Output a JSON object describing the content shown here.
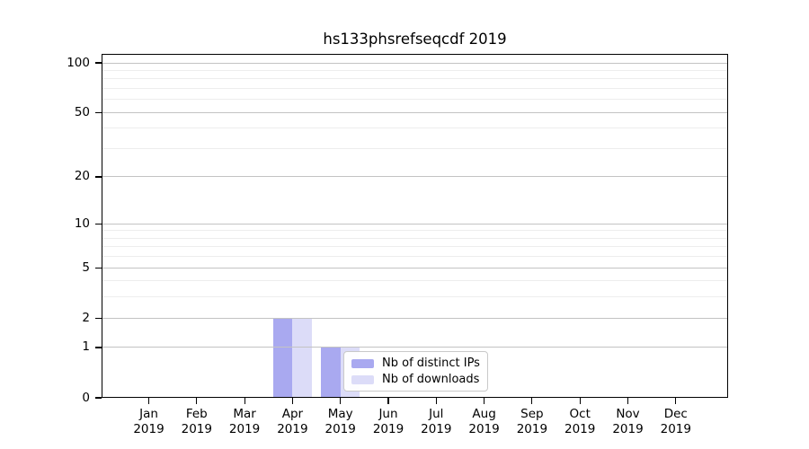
{
  "chart_data": {
    "type": "bar",
    "title": "hs133phsrefseqcdf 2019",
    "categories": [
      "Jan 2019",
      "Feb 2019",
      "Mar 2019",
      "Apr 2019",
      "May 2019",
      "Jun 2019",
      "Jul 2019",
      "Aug 2019",
      "Sep 2019",
      "Oct 2019",
      "Nov 2019",
      "Dec 2019"
    ],
    "series": [
      {
        "name": "Nb of distinct IPs",
        "color": "#a9a9f0",
        "values": [
          0,
          0,
          0,
          2,
          1,
          0,
          0,
          0,
          0,
          0,
          0,
          0
        ]
      },
      {
        "name": "Nb of downloads",
        "color": "#dcdcf8",
        "values": [
          0,
          0,
          0,
          2,
          1,
          0,
          0,
          0,
          0,
          0,
          0,
          0
        ]
      }
    ],
    "y_axis": {
      "scale": "log10(1+y)",
      "tick_labels": [
        "0",
        "1",
        "2",
        "5",
        "10",
        "20",
        "50",
        "100"
      ],
      "tick_values": [
        0,
        1,
        2,
        5,
        10,
        20,
        50,
        100
      ],
      "minor_tick_values": [
        3,
        4,
        6,
        7,
        8,
        9,
        30,
        40,
        60,
        70,
        80,
        90
      ],
      "range_top": 113
    },
    "x_axis": {
      "label_line2": "2019"
    },
    "legend": {
      "entries": [
        "Nb of distinct IPs",
        "Nb of downloads"
      ],
      "position": "lower center"
    },
    "grid": {
      "on": true,
      "major_color": "#c3c3c3",
      "minor_color": "#ededed"
    },
    "colors": {
      "bar_distinct_ips": "#a9a9f0",
      "bar_downloads": "#dcdcf8",
      "axis": "#000000",
      "legend_border": "#c9c9c9"
    }
  }
}
